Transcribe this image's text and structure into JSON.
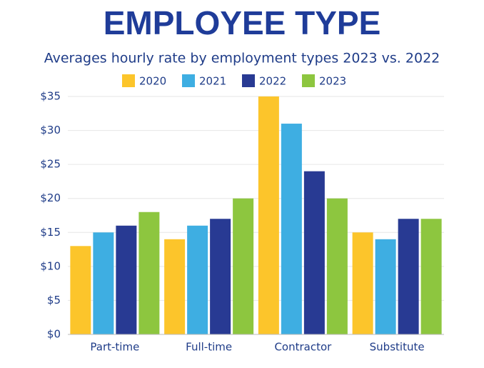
{
  "chart_data": {
    "type": "bar",
    "title": "EMPLOYEE TYPE",
    "subtitle": "Averages hourly rate by employment types 2023 vs. 2022",
    "categories": [
      "Part-time",
      "Full-time",
      "Contractor",
      "Substitute"
    ],
    "series": [
      {
        "name": "2020",
        "color": "#fcc52b",
        "values": [
          13,
          14,
          35,
          15
        ]
      },
      {
        "name": "2021",
        "color": "#3eaee2",
        "values": [
          15,
          16,
          31,
          14
        ]
      },
      {
        "name": "2022",
        "color": "#283a93",
        "values": [
          16,
          17,
          24,
          17
        ]
      },
      {
        "name": "2023",
        "color": "#8dc63f",
        "values": [
          18,
          20,
          20,
          17
        ]
      }
    ],
    "ylim": [
      0,
      35
    ],
    "yticks": [
      {
        "value": 0,
        "label": "$0"
      },
      {
        "value": 5,
        "label": "$5"
      },
      {
        "value": 10,
        "label": "$10"
      },
      {
        "value": 15,
        "label": "$15"
      },
      {
        "value": 20,
        "label": "$20"
      },
      {
        "value": 25,
        "label": "$25"
      },
      {
        "value": 30,
        "label": "$30"
      },
      {
        "value": 35,
        "label": "$35"
      }
    ],
    "grid": true,
    "legend": "top"
  }
}
